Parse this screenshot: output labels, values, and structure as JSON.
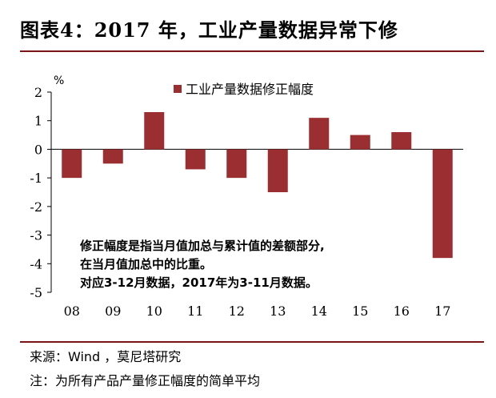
{
  "title": "图表4：2017 年，工业产量数据异常下修",
  "source": "来源：Wind ，莫尼塔研究",
  "note": "注：为所有产品产量修正幅度的简单平均",
  "chart_data": {
    "type": "bar",
    "title": "",
    "ylabel": "%",
    "xlabel": "",
    "categories": [
      "08",
      "09",
      "10",
      "11",
      "12",
      "13",
      "14",
      "15",
      "16",
      "17"
    ],
    "series": [
      {
        "name": "工业产量数据修正幅度",
        "values": [
          -1.0,
          -0.5,
          1.3,
          -0.7,
          -1.0,
          -1.5,
          1.1,
          0.5,
          0.6,
          -3.8
        ]
      }
    ],
    "ylim": [
      -5,
      2
    ],
    "yticks": [
      "2",
      "1",
      "0",
      "-1",
      "-2",
      "-3",
      "-4",
      "-5"
    ],
    "bar_color": "#9b2e30",
    "grid": false,
    "legend_position": "top",
    "annotations": [
      "修正幅度是指当月值加总与累计值的差额部分,",
      "在当月值加总中的比重。",
      "对应3-12月数据，2017年为3-11月数据。"
    ]
  }
}
